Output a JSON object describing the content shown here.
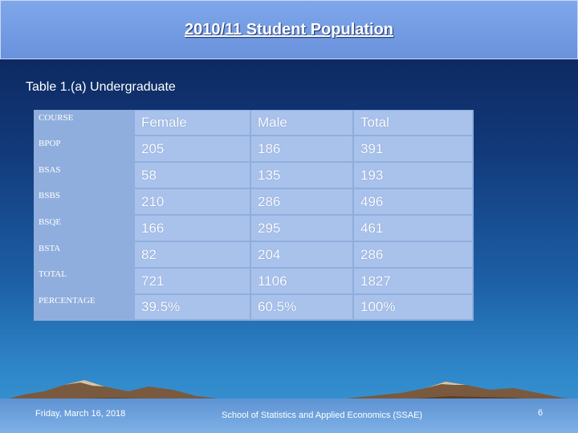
{
  "slide": {
    "title": "2010/11 Student Population",
    "subtitle": "Table 1.(a) Undergraduate"
  },
  "table": {
    "corner_label": "COURSE",
    "headers": [
      "Female",
      "Male",
      "Total"
    ],
    "rows": [
      {
        "course": "BPOP",
        "female": "205",
        "male": "186",
        "total": "391"
      },
      {
        "course": "BSAS",
        "female": "58",
        "male": "135",
        "total": "193"
      },
      {
        "course": "BSBS",
        "female": "210",
        "male": "286",
        "total": "496"
      },
      {
        "course": "BSQE",
        "female": "166",
        "male": "295",
        "total": "461"
      },
      {
        "course": "BSTA",
        "female": "82",
        "male": "204",
        "total": "286"
      },
      {
        "course": "TOTAL",
        "female": "721",
        "male": "1106",
        "total": "1827"
      },
      {
        "course": "PERCENTAGE",
        "female": "39.5%",
        "male": "60.5%",
        "total": "100%"
      }
    ]
  },
  "footer": {
    "date": "Friday, March 16, 2018",
    "school": "School of Statistics and Applied Economics (SSAE)",
    "page_number": "6"
  }
}
